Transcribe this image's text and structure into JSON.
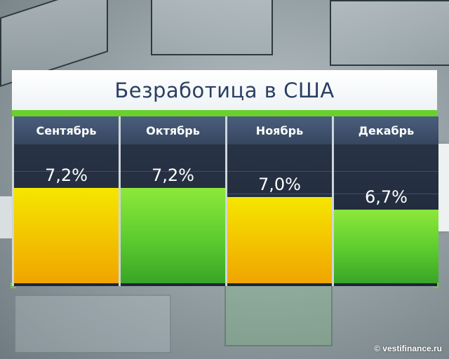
{
  "chart_data": {
    "type": "bar",
    "title": "Безработица в США",
    "categories": [
      "Сентябрь",
      "Октябрь",
      "Ноябрь",
      "Декабрь"
    ],
    "values": [
      7.2,
      7.2,
      7.0,
      6.7
    ],
    "value_labels": [
      "7,2%",
      "7,2%",
      "7,0%",
      "6,7%"
    ],
    "bar_colors": [
      "yellow",
      "green",
      "yellow",
      "green"
    ],
    "ylim": [
      5.0,
      7.5
    ],
    "xlabel": "",
    "ylabel": "",
    "grid": false
  },
  "colors": {
    "title_text": "#2b3f63",
    "accent_green": "#6ad02c",
    "header_bg": "#36465f",
    "column_bg": "#1c2636"
  },
  "credit": "© vestifinance.ru"
}
